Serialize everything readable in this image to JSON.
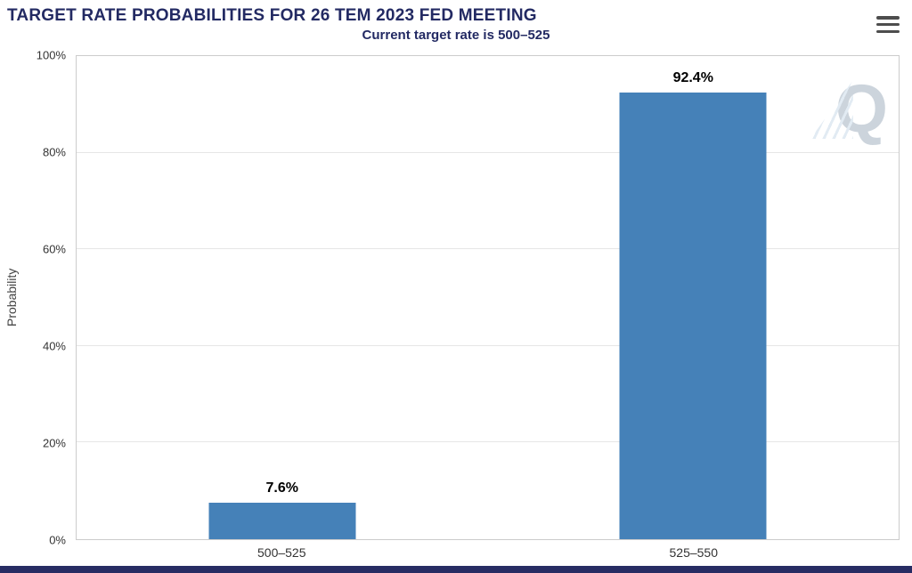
{
  "header": {
    "title": "TARGET RATE PROBABILITIES FOR 26 TEM 2023 FED MEETING",
    "subtitle": "Current target rate is 500–525"
  },
  "menu": {
    "icon": "hamburger-icon"
  },
  "watermark": {
    "letter": "Q"
  },
  "colors": {
    "title_navy": "#232a63",
    "bar_blue": "#4581b8",
    "bottom_strip_navy": "#272c63",
    "gridline_gray": "#e6e6e6",
    "axis_text": "#333333"
  },
  "chart_data": {
    "type": "bar",
    "title": "TARGET RATE PROBABILITIES FOR 26 TEM 2023 FED MEETING",
    "subtitle": "Current target rate is 500–525",
    "categories": [
      "500–525",
      "525–550"
    ],
    "values": [
      7.6,
      92.4
    ],
    "value_labels": [
      "7.6%",
      "92.4%"
    ],
    "xlabel": "",
    "ylabel": "Probability",
    "ylim": [
      0,
      100
    ],
    "yticks": [
      "0%",
      "20%",
      "40%",
      "60%",
      "80%",
      "100%"
    ],
    "grid": true,
    "legend": false,
    "bar_color": "#4581b8"
  }
}
